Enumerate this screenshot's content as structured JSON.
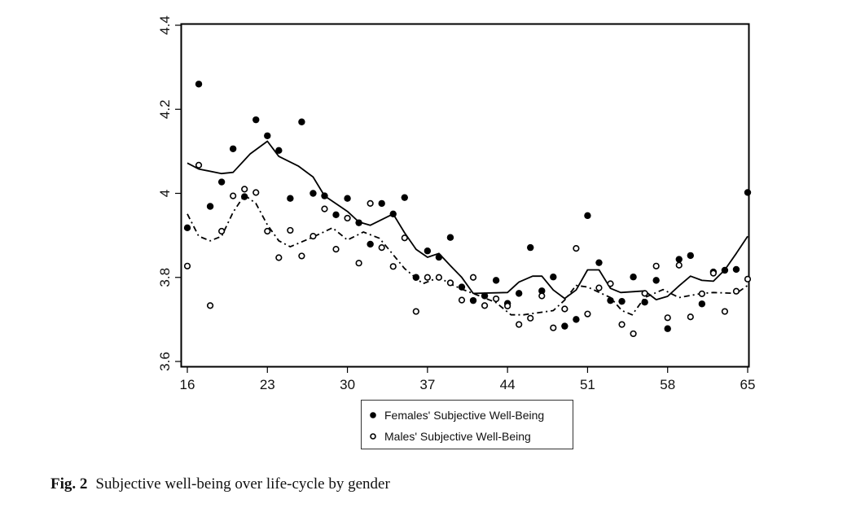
{
  "chart_data": {
    "type": "scatter",
    "title": "",
    "xlabel": "",
    "ylabel": "",
    "xlim": [
      16,
      65
    ],
    "ylim": [
      3.6,
      4.4
    ],
    "xticks": [
      16,
      23,
      30,
      37,
      44,
      51,
      58,
      65
    ],
    "yticks": [
      3.6,
      3.8,
      4,
      4.2,
      4.4
    ],
    "xtick_labels": [
      "16",
      "23",
      "30",
      "37",
      "44",
      "51",
      "58",
      "65"
    ],
    "ytick_labels": [
      "3.6",
      "3.8",
      "4",
      "4.2",
      "4.4"
    ],
    "grid": false,
    "legend_position": "bottom-center-below-plot",
    "series": [
      {
        "name": "Females' Subjective Well-Being",
        "marker": "filled-circle",
        "color": "#000000",
        "x": [
          16,
          17,
          18,
          19,
          20,
          21,
          22,
          23,
          24,
          25,
          26,
          27,
          28,
          29,
          30,
          31,
          32,
          33,
          34,
          35,
          36,
          37,
          38,
          39,
          40,
          41,
          42,
          43,
          44,
          45,
          46,
          47,
          48,
          49,
          50,
          51,
          52,
          53,
          54,
          55,
          56,
          57,
          58,
          59,
          60,
          61,
          62,
          63,
          64,
          65
        ],
        "values": [
          3.918,
          4.26,
          3.969,
          4.027,
          4.106,
          3.992,
          4.175,
          4.137,
          4.102,
          3.988,
          4.17,
          4.0,
          3.994,
          3.949,
          3.988,
          3.93,
          3.879,
          3.976,
          3.951,
          3.99,
          3.8,
          3.863,
          3.848,
          3.895,
          3.777,
          3.745,
          3.756,
          3.793,
          3.738,
          3.762,
          3.871,
          3.768,
          3.801,
          3.684,
          3.7,
          3.947,
          3.835,
          3.745,
          3.743,
          3.801,
          3.741,
          3.793,
          3.678,
          3.843,
          3.852,
          3.737,
          3.813,
          3.817,
          3.819,
          4.002
        ]
      },
      {
        "name": "Males' Subjective Well-Being",
        "marker": "open-circle",
        "color": "#000000",
        "x": [
          16,
          17,
          18,
          19,
          20,
          21,
          22,
          23,
          24,
          25,
          26,
          27,
          28,
          29,
          30,
          31,
          32,
          33,
          34,
          35,
          36,
          37,
          38,
          39,
          40,
          41,
          42,
          43,
          44,
          45,
          46,
          47,
          48,
          49,
          50,
          51,
          52,
          53,
          54,
          55,
          56,
          57,
          58,
          59,
          60,
          61,
          62,
          63,
          64,
          65
        ],
        "values": [
          3.827,
          4.067,
          3.733,
          3.91,
          3.994,
          4.01,
          4.002,
          3.91,
          3.847,
          3.912,
          3.851,
          3.898,
          3.963,
          3.867,
          3.941,
          3.834,
          3.976,
          3.871,
          3.826,
          3.894,
          3.719,
          3.8,
          3.8,
          3.787,
          3.746,
          3.8,
          3.733,
          3.749,
          3.732,
          3.688,
          3.703,
          3.756,
          3.68,
          3.725,
          3.869,
          3.713,
          3.775,
          3.785,
          3.688,
          3.666,
          3.762,
          3.827,
          3.704,
          3.829,
          3.706,
          3.761,
          3.81,
          3.719,
          3.767,
          3.796
        ]
      }
    ],
    "smoothed_lines": [
      {
        "name": "Females smoothed",
        "style": "solid",
        "x": [
          16,
          17,
          19,
          20,
          21.5,
          23,
          24,
          25.7,
          27,
          28,
          30,
          31,
          32,
          34,
          35,
          36,
          37,
          38,
          39,
          40,
          41,
          44,
          45,
          46.2,
          47,
          48,
          49,
          50,
          51,
          52,
          53,
          53.9,
          56,
          57,
          58,
          59,
          60,
          61,
          62,
          63,
          64,
          65
        ],
        "values": [
          4.072,
          4.058,
          4.047,
          4.05,
          4.094,
          4.124,
          4.088,
          4.065,
          4.039,
          3.994,
          3.957,
          3.932,
          3.924,
          3.951,
          3.906,
          3.867,
          3.848,
          3.857,
          3.828,
          3.8,
          3.762,
          3.764,
          3.789,
          3.803,
          3.803,
          3.77,
          3.75,
          3.77,
          3.818,
          3.818,
          3.774,
          3.764,
          3.768,
          3.747,
          3.755,
          3.78,
          3.803,
          3.793,
          3.791,
          3.818,
          3.857,
          3.898
        ]
      },
      {
        "name": "Males smoothed",
        "style": "dash-dot",
        "x": [
          16,
          17,
          18,
          19,
          20,
          21,
          22,
          23,
          24,
          25,
          27,
          28.7,
          30,
          31.4,
          32.8,
          33.7,
          35,
          36.6,
          38,
          39.2,
          40,
          41,
          43,
          44.3,
          45.4,
          48,
          49,
          50,
          51,
          53,
          54,
          54.9,
          56,
          57.6,
          59,
          61,
          62,
          64,
          65
        ],
        "values": [
          3.951,
          3.898,
          3.887,
          3.898,
          3.955,
          3.996,
          3.976,
          3.925,
          3.887,
          3.873,
          3.896,
          3.918,
          3.889,
          3.908,
          3.893,
          3.864,
          3.821,
          3.785,
          3.8,
          3.782,
          3.772,
          3.762,
          3.74,
          3.711,
          3.711,
          3.721,
          3.746,
          3.781,
          3.777,
          3.752,
          3.721,
          3.711,
          3.752,
          3.771,
          3.752,
          3.762,
          3.764,
          3.762,
          3.781
        ]
      }
    ]
  },
  "legend": {
    "entries": [
      {
        "label": "Females' Subjective Well-Being",
        "marker": "filled-circle"
      },
      {
        "label": "Males' Subjective Well-Being",
        "marker": "open-circle"
      }
    ]
  },
  "caption": {
    "figure_label": "Fig. 2",
    "text": "Subjective well-being over life-cycle by gender"
  }
}
